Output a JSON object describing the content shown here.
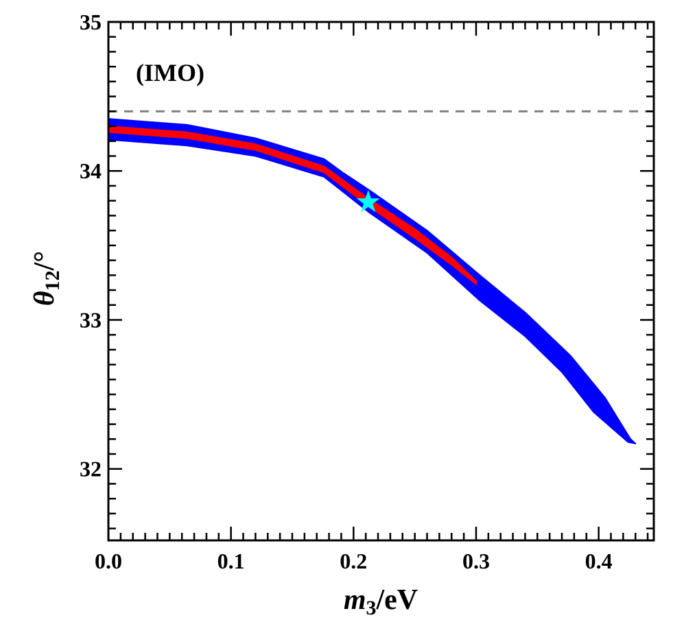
{
  "chart_data": {
    "type": "scatter",
    "title": "",
    "xlabel": {
      "main": "m",
      "sub": "3",
      "rest": "/eV"
    },
    "ylabel": {
      "main": "θ",
      "sub": "12",
      "rest": "/°"
    },
    "xlim": [
      0,
      0.445
    ],
    "ylim": [
      31.52,
      35
    ],
    "xticks": [
      0.0,
      0.1,
      0.2,
      0.3,
      0.4
    ],
    "xtick_labels": [
      "0.0",
      "0.1",
      "0.2",
      "0.3",
      "0.4"
    ],
    "yticks": [
      32,
      33,
      34,
      35
    ],
    "ytick_labels": [
      "32",
      "33",
      "34",
      "35"
    ],
    "x_minor_step": 0.01,
    "y_minor_step": 0.1,
    "grid": false,
    "annotation": "(IMO)",
    "reference_line": {
      "y": 34.4,
      "style": "dashed",
      "color": "#808080"
    },
    "regions": [
      {
        "color": "#0000ff",
        "upper": [
          [
            0.0,
            34.35
          ],
          [
            0.064,
            34.31
          ],
          [
            0.12,
            34.22
          ],
          [
            0.176,
            34.08
          ],
          [
            0.191,
            33.99
          ],
          [
            0.213,
            33.87
          ],
          [
            0.26,
            33.6
          ],
          [
            0.303,
            33.3
          ],
          [
            0.34,
            33.05
          ],
          [
            0.377,
            32.76
          ],
          [
            0.405,
            32.48
          ],
          [
            0.426,
            32.2
          ],
          [
            0.43,
            32.17
          ]
        ],
        "lower": [
          [
            0.0,
            34.21
          ],
          [
            0.064,
            34.17
          ],
          [
            0.12,
            34.1
          ],
          [
            0.176,
            33.96
          ],
          [
            0.213,
            33.72
          ],
          [
            0.26,
            33.45
          ],
          [
            0.303,
            33.13
          ],
          [
            0.34,
            32.89
          ],
          [
            0.37,
            32.65
          ],
          [
            0.396,
            32.38
          ],
          [
            0.424,
            32.18
          ],
          [
            0.43,
            32.17
          ]
        ]
      },
      {
        "color": "#ff0000",
        "upper": [
          [
            0.0,
            34.3
          ],
          [
            0.064,
            34.26
          ],
          [
            0.12,
            34.18
          ],
          [
            0.176,
            34.03
          ],
          [
            0.213,
            33.81
          ],
          [
            0.25,
            33.61
          ],
          [
            0.28,
            33.42
          ],
          [
            0.3,
            33.26
          ]
        ],
        "lower": [
          [
            0.0,
            34.26
          ],
          [
            0.064,
            34.22
          ],
          [
            0.12,
            34.14
          ],
          [
            0.176,
            33.99
          ],
          [
            0.213,
            33.76
          ],
          [
            0.25,
            33.55
          ],
          [
            0.28,
            33.37
          ],
          [
            0.3,
            33.24
          ]
        ]
      }
    ],
    "best_fit": {
      "x": 0.212,
      "y": 33.79,
      "marker": "star",
      "color": "#00ffff"
    }
  }
}
